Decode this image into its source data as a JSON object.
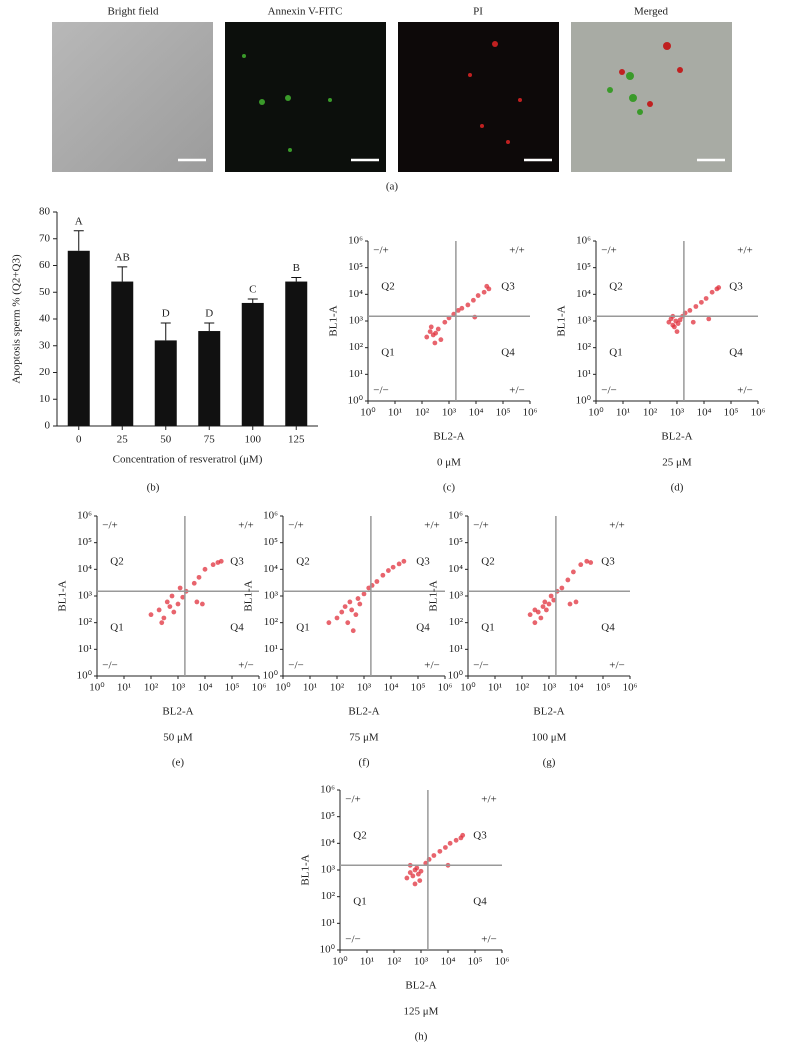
{
  "figure": {
    "images": {
      "titles": [
        "Bright field",
        "Annexin V-FITC",
        "PI",
        "Merged"
      ],
      "panel_label": "(a)"
    }
  },
  "chart_data": [
    {
      "type": "bar",
      "panel_label": "(b)",
      "y_label": "Apoptosis sperm % (Q2+Q3)",
      "x_label": "Concentration of resveratrol (μM)",
      "categories": [
        "0",
        "25",
        "50",
        "75",
        "100",
        "125"
      ],
      "values": [
        65.5,
        54,
        32,
        35.5,
        46,
        54
      ],
      "errors": [
        7.5,
        5.5,
        6.5,
        3,
        1.5,
        1.5
      ],
      "annotations": [
        "A",
        "AB",
        "D",
        "D",
        "C",
        "B"
      ],
      "color": "#111111",
      "ylim": [
        0,
        80
      ],
      "yticks": [
        0,
        10,
        20,
        30,
        40,
        50,
        60,
        70,
        80
      ]
    },
    {
      "type": "scatter",
      "panel_label": "(c)",
      "condition": "0 μM",
      "x_label": "BL2-A",
      "y_label": "BL1-A",
      "log": true,
      "color": "#e0303c",
      "xlim": [
        1,
        1000000
      ],
      "ylim": [
        1,
        1000000
      ],
      "xticks": [
        {
          "value": 1,
          "label": "10⁰"
        },
        {
          "value": 10,
          "label": "10¹"
        },
        {
          "value": 100,
          "label": "10²"
        },
        {
          "value": 1000,
          "label": "10³"
        },
        {
          "value": 10000,
          "label": "10⁴"
        },
        {
          "value": 100000,
          "label": "10⁵"
        },
        {
          "value": 1000000,
          "label": "10⁶"
        }
      ],
      "yticks": [
        {
          "value": 1,
          "label": "10⁰"
        },
        {
          "value": 10,
          "label": "10¹"
        },
        {
          "value": 100,
          "label": "10²"
        },
        {
          "value": 1000,
          "label": "10³"
        },
        {
          "value": 10000,
          "label": "10⁴"
        },
        {
          "value": 100000,
          "label": "10⁵"
        },
        {
          "value": 1000000,
          "label": "10⁶"
        }
      ],
      "quadrant_x": 1800,
      "quadrant_y": 1500,
      "quadrant_labels": [
        "Q1",
        "Q2",
        "Q3",
        "Q4"
      ],
      "corner_labels": [
        "−/+",
        "+/+",
        "−/−",
        "+/−"
      ],
      "x": [
        150,
        200,
        260,
        320,
        400,
        500,
        300,
        220,
        700,
        1000,
        1500,
        2200,
        3000,
        5000,
        8000,
        12000,
        20000,
        30000,
        25000,
        9000
      ],
      "y": [
        250,
        400,
        300,
        350,
        500,
        200,
        150,
        600,
        900,
        1300,
        1800,
        2500,
        3000,
        4000,
        6000,
        9000,
        12000,
        16000,
        20000,
        1400
      ]
    },
    {
      "type": "scatter",
      "panel_label": "(d)",
      "condition": "25 μM",
      "x_label": "BL2-A",
      "y_label": "BL1-A",
      "log": true,
      "color": "#e0303c",
      "xlim": [
        1,
        1000000
      ],
      "ylim": [
        1,
        1000000
      ],
      "xticks": [
        {
          "value": 1,
          "label": "10⁰"
        },
        {
          "value": 10,
          "label": "10¹"
        },
        {
          "value": 100,
          "label": "10²"
        },
        {
          "value": 1000,
          "label": "10³"
        },
        {
          "value": 10000,
          "label": "10⁴"
        },
        {
          "value": 100000,
          "label": "10⁵"
        },
        {
          "value": 1000000,
          "label": "10⁶"
        }
      ],
      "yticks": [
        {
          "value": 1,
          "label": "10⁰"
        },
        {
          "value": 10,
          "label": "10¹"
        },
        {
          "value": 100,
          "label": "10²"
        },
        {
          "value": 1000,
          "label": "10³"
        },
        {
          "value": 10000,
          "label": "10⁴"
        },
        {
          "value": 100000,
          "label": "10⁵"
        },
        {
          "value": 1000000,
          "label": "10⁶"
        }
      ],
      "quadrant_x": 1800,
      "quadrant_y": 1500,
      "quadrant_labels": [
        "Q1",
        "Q2",
        "Q3",
        "Q4"
      ],
      "corner_labels": [
        "−/+",
        "+/+",
        "−/−",
        "+/−"
      ],
      "x": [
        500,
        700,
        900,
        1100,
        600,
        800,
        1300,
        1600,
        2000,
        3000,
        5000,
        8000,
        12000,
        20000,
        30000,
        35000,
        1000,
        700,
        15000,
        4000
      ],
      "y": [
        900,
        700,
        1000,
        800,
        1200,
        600,
        1100,
        1500,
        2000,
        2500,
        3500,
        5000,
        7000,
        12000,
        16000,
        18000,
        400,
        1500,
        1200,
        900
      ]
    },
    {
      "type": "scatter",
      "panel_label": "(e)",
      "condition": "50 μM",
      "x_label": "BL2-A",
      "y_label": "BL1-A",
      "log": true,
      "color": "#e0303c",
      "xlim": [
        1,
        1000000
      ],
      "ylim": [
        1,
        1000000
      ],
      "xticks": [
        {
          "value": 1,
          "label": "10⁰"
        },
        {
          "value": 10,
          "label": "10¹"
        },
        {
          "value": 100,
          "label": "10²"
        },
        {
          "value": 1000,
          "label": "10³"
        },
        {
          "value": 10000,
          "label": "10⁴"
        },
        {
          "value": 100000,
          "label": "10⁵"
        },
        {
          "value": 1000000,
          "label": "10⁶"
        }
      ],
      "yticks": [
        {
          "value": 1,
          "label": "10⁰"
        },
        {
          "value": 10,
          "label": "10¹"
        },
        {
          "value": 100,
          "label": "10²"
        },
        {
          "value": 1000,
          "label": "10³"
        },
        {
          "value": 10000,
          "label": "10⁴"
        },
        {
          "value": 100000,
          "label": "10⁵"
        },
        {
          "value": 1000000,
          "label": "10⁶"
        }
      ],
      "quadrant_x": 1800,
      "quadrant_y": 1500,
      "quadrant_labels": [
        "Q1",
        "Q2",
        "Q3",
        "Q4"
      ],
      "corner_labels": [
        "−/+",
        "+/+",
        "−/−",
        "+/−"
      ],
      "x": [
        100,
        200,
        300,
        500,
        700,
        1000,
        1500,
        400,
        250,
        2000,
        4000,
        6000,
        10000,
        20000,
        30000,
        40000,
        5000,
        8000,
        600,
        1200
      ],
      "y": [
        200,
        300,
        150,
        400,
        250,
        500,
        900,
        600,
        100,
        1500,
        3000,
        5000,
        10000,
        15000,
        18000,
        20000,
        600,
        500,
        1000,
        2000
      ]
    },
    {
      "type": "scatter",
      "panel_label": "(f)",
      "condition": "75 μM",
      "x_label": "BL2-A",
      "y_label": "BL1-A",
      "log": true,
      "color": "#e0303c",
      "xlim": [
        1,
        1000000
      ],
      "ylim": [
        1,
        1000000
      ],
      "xticks": [
        {
          "value": 1,
          "label": "10⁰"
        },
        {
          "value": 10,
          "label": "10¹"
        },
        {
          "value": 100,
          "label": "10²"
        },
        {
          "value": 1000,
          "label": "10³"
        },
        {
          "value": 10000,
          "label": "10⁴"
        },
        {
          "value": 100000,
          "label": "10⁵"
        },
        {
          "value": 1000000,
          "label": "10⁶"
        }
      ],
      "yticks": [
        {
          "value": 1,
          "label": "10⁰"
        },
        {
          "value": 10,
          "label": "10¹"
        },
        {
          "value": 100,
          "label": "10²"
        },
        {
          "value": 1000,
          "label": "10³"
        },
        {
          "value": 10000,
          "label": "10⁴"
        },
        {
          "value": 100000,
          "label": "10⁵"
        },
        {
          "value": 1000000,
          "label": "10⁶"
        }
      ],
      "quadrant_x": 1800,
      "quadrant_y": 1500,
      "quadrant_labels": [
        "Q1",
        "Q2",
        "Q3",
        "Q4"
      ],
      "corner_labels": [
        "−/+",
        "+/+",
        "−/−",
        "+/−"
      ],
      "x": [
        100,
        150,
        250,
        350,
        500,
        700,
        200,
        300,
        1000,
        1500,
        2000,
        3000,
        5000,
        8000,
        12000,
        20000,
        30000,
        400,
        600,
        50
      ],
      "y": [
        150,
        250,
        100,
        300,
        200,
        500,
        400,
        600,
        1200,
        2000,
        2500,
        3500,
        6000,
        9000,
        12000,
        16000,
        20000,
        50,
        800,
        100
      ]
    },
    {
      "type": "scatter",
      "panel_label": "(g)",
      "condition": "100 μM",
      "x_label": "BL2-A",
      "y_label": "BL1-A",
      "log": true,
      "color": "#e0303c",
      "xlim": [
        1,
        1000000
      ],
      "ylim": [
        1,
        1000000
      ],
      "xticks": [
        {
          "value": 1,
          "label": "10⁰"
        },
        {
          "value": 10,
          "label": "10¹"
        },
        {
          "value": 100,
          "label": "10²"
        },
        {
          "value": 1000,
          "label": "10³"
        },
        {
          "value": 10000,
          "label": "10⁴"
        },
        {
          "value": 100000,
          "label": "10⁵"
        },
        {
          "value": 1000000,
          "label": "10⁶"
        }
      ],
      "yticks": [
        {
          "value": 1,
          "label": "10⁰"
        },
        {
          "value": 10,
          "label": "10¹"
        },
        {
          "value": 100,
          "label": "10²"
        },
        {
          "value": 1000,
          "label": "10³"
        },
        {
          "value": 10000,
          "label": "10⁴"
        },
        {
          "value": 100000,
          "label": "10⁵"
        },
        {
          "value": 1000000,
          "label": "10⁶"
        }
      ],
      "quadrant_x": 1800,
      "quadrant_y": 1500,
      "quadrant_labels": [
        "Q1",
        "Q2",
        "Q3",
        "Q4"
      ],
      "corner_labels": [
        "−/+",
        "+/+",
        "−/−",
        "+/−"
      ],
      "x": [
        200,
        300,
        400,
        600,
        800,
        1000,
        1500,
        500,
        700,
        2000,
        3000,
        5000,
        8000,
        15000,
        25000,
        35000,
        10000,
        6000,
        1200,
        300
      ],
      "y": [
        200,
        300,
        250,
        400,
        300,
        500,
        700,
        150,
        600,
        1500,
        2000,
        4000,
        8000,
        15000,
        20000,
        18000,
        600,
        500,
        1000,
        100
      ]
    },
    {
      "type": "scatter",
      "panel_label": "(h)",
      "condition": "125 μM",
      "x_label": "BL2-A",
      "y_label": "BL1-A",
      "log": true,
      "color": "#e0303c",
      "xlim": [
        1,
        1000000
      ],
      "ylim": [
        1,
        1000000
      ],
      "xticks": [
        {
          "value": 1,
          "label": "10⁰"
        },
        {
          "value": 10,
          "label": "10¹"
        },
        {
          "value": 100,
          "label": "10²"
        },
        {
          "value": 1000,
          "label": "10³"
        },
        {
          "value": 10000,
          "label": "10⁴"
        },
        {
          "value": 100000,
          "label": "10⁵"
        },
        {
          "value": 1000000,
          "label": "10⁶"
        }
      ],
      "yticks": [
        {
          "value": 1,
          "label": "10⁰"
        },
        {
          "value": 10,
          "label": "10¹"
        },
        {
          "value": 100,
          "label": "10²"
        },
        {
          "value": 1000,
          "label": "10³"
        },
        {
          "value": 10000,
          "label": "10⁴"
        },
        {
          "value": 100000,
          "label": "10⁵"
        },
        {
          "value": 1000000,
          "label": "10⁶"
        }
      ],
      "quadrant_x": 1800,
      "quadrant_y": 1500,
      "quadrant_labels": [
        "Q1",
        "Q2",
        "Q3",
        "Q4"
      ],
      "corner_labels": [
        "−/+",
        "+/+",
        "−/−",
        "+/−"
      ],
      "x": [
        300,
        400,
        500,
        600,
        800,
        1000,
        700,
        900,
        1500,
        2000,
        3000,
        5000,
        8000,
        12000,
        20000,
        30000,
        35000,
        600,
        10000,
        400
      ],
      "y": [
        500,
        800,
        600,
        1000,
        700,
        900,
        1200,
        400,
        1800,
        2500,
        3500,
        5000,
        7000,
        10000,
        13000,
        16000,
        20000,
        300,
        1500,
        1500
      ]
    }
  ]
}
